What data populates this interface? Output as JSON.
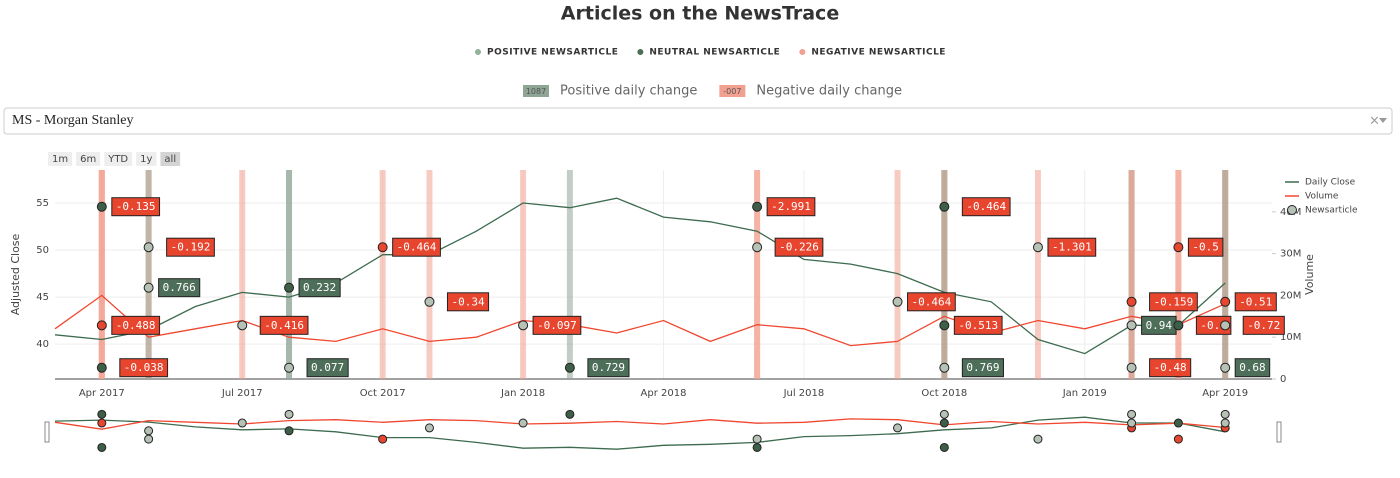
{
  "header": {
    "title": "Articles on the NewsTrace",
    "legend": [
      {
        "name": "POSITIVE NEWSARTICLE",
        "color": "#8fb39a"
      },
      {
        "name": "NEUTRAL NEWSARTICLE",
        "color": "#4b6e57"
      },
      {
        "name": "NEGATIVE NEWSARTICLE",
        "color": "#f0a090"
      }
    ],
    "change_legend": [
      {
        "badge": "1087",
        "label": "Positive daily change",
        "color": "#8fa595"
      },
      {
        "badge": "-007",
        "label": "Negative daily change",
        "color": "#f2a090"
      }
    ]
  },
  "controls": {
    "dropdown": "MS - Morgan Stanley",
    "clear": "×",
    "ranges": [
      "1m",
      "6m",
      "YTD",
      "1y",
      "all"
    ]
  },
  "chart_data": {
    "type": "line",
    "ylabel": "Adjusted Close",
    "y2label": "Volume",
    "x": [
      "2017-03",
      "2017-04",
      "2017-05",
      "2017-06",
      "2017-07",
      "2017-08",
      "2017-09",
      "2017-10",
      "2017-11",
      "2017-12",
      "2018-01",
      "2018-02",
      "2018-03",
      "2018-04",
      "2018-05",
      "2018-06",
      "2018-07",
      "2018-08",
      "2018-09",
      "2018-10",
      "2018-11",
      "2018-12",
      "2019-01",
      "2019-02",
      "2019-03",
      "2019-04"
    ],
    "series": [
      {
        "name": "Daily Close",
        "color": "#3d6b4f",
        "values": [
          41,
          40.5,
          41.5,
          44,
          45.5,
          45,
          46.5,
          49.5,
          49.5,
          52,
          55,
          54.5,
          55.5,
          53.5,
          53,
          52,
          49,
          48.5,
          47.5,
          45.5,
          44.5,
          40.5,
          39,
          42,
          42,
          46.5
        ]
      },
      {
        "name": "Volume",
        "color": "#f0472f",
        "axis": "y2",
        "values": [
          12000000,
          20000000,
          10000000,
          12000000,
          14000000,
          10000000,
          9000000,
          12000000,
          9000000,
          10000000,
          14000000,
          13000000,
          11000000,
          14000000,
          9000000,
          13000000,
          12000000,
          8000000,
          9000000,
          15000000,
          11000000,
          14000000,
          12000000,
          15000000,
          13000000,
          18000000
        ]
      }
    ],
    "news": {
      "name": "Newsarticle",
      "x": [
        "2017-04",
        "2017-05",
        "2017-04",
        "2017-04",
        "2017-05",
        "2017-07",
        "2017-08",
        "2017-08",
        "2017-10",
        "2017-11",
        "2018-01",
        "2018-02",
        "2018-06",
        "2018-06",
        "2018-09",
        "2018-10",
        "2018-10",
        "2018-10",
        "2018-12",
        "2019-02",
        "2019-02",
        "2019-02",
        "2019-03",
        "2019-03",
        "2019-04",
        "2019-04",
        "2019-04"
      ],
      "values": [
        54.6,
        50.3,
        42,
        37.5,
        46,
        42,
        46,
        37.5,
        50.3,
        44.5,
        42,
        37.5,
        54.6,
        50.3,
        44.5,
        54.6,
        42,
        37.5,
        50.3,
        44.5,
        42,
        37.5,
        50.3,
        42,
        44.5,
        42,
        37.5
      ],
      "changes": [
        -0.135,
        -0.192,
        -0.488,
        -0.038,
        0.766,
        -0.416,
        0.232,
        0.077,
        -0.464,
        -0.34,
        -0.097,
        0.729,
        -2.991,
        -0.226,
        -0.464,
        -0.464,
        -0.513,
        0.769,
        -1.301,
        -0.159,
        0.94,
        -0.48,
        -0.5,
        -0.6,
        -0.51,
        -0.72,
        0.68
      ],
      "colors": [
        "#3e5f47",
        "#b7c2b7",
        "#e8472f",
        "#3e5f47",
        "#b7c2b7",
        "#b7c2b7",
        "#3e5f47",
        "#b7c2b7",
        "#e8472f",
        "#b7c2b7",
        "#b7c2b7",
        "#3e5f47",
        "#3e5f47",
        "#b7c2b7",
        "#b7c2b7",
        "#3e5f47",
        "#3e5f47",
        "#b7c2b7",
        "#b7c2b7",
        "#e8472f",
        "#b7c2b7",
        "#b7c2b7",
        "#e8472f",
        "#3e5f47",
        "#e8472f",
        "#b7c2b7",
        "#b7c2b7"
      ]
    },
    "xlim": [
      "2017-03",
      "2019-05"
    ],
    "xticks": [
      {
        "value": "2017-04",
        "label": "Apr 2017"
      },
      {
        "value": "2017-07",
        "label": "Jul 2017"
      },
      {
        "value": "2017-10",
        "label": "Oct 2017"
      },
      {
        "value": "2018-01",
        "label": "Jan 2018"
      },
      {
        "value": "2018-04",
        "label": "Apr 2018"
      },
      {
        "value": "2018-07",
        "label": "Jul 2018"
      },
      {
        "value": "2018-10",
        "label": "Oct 2018"
      },
      {
        "value": "2019-01",
        "label": "Jan 2019"
      },
      {
        "value": "2019-04",
        "label": "Apr 2019"
      }
    ],
    "ylim": [
      36.3,
      58.5
    ],
    "yticks": [
      40,
      45,
      50,
      55
    ],
    "y2lim": [
      0,
      50000000
    ],
    "y2ticks": [
      0,
      {
        "value": 10000000,
        "label": "10M"
      },
      {
        "value": 20000000,
        "label": "20M"
      },
      {
        "value": 30000000,
        "label": "30M"
      },
      {
        "value": 40000000,
        "label": "40M"
      }
    ],
    "grid": true,
    "legend": "top-right"
  }
}
